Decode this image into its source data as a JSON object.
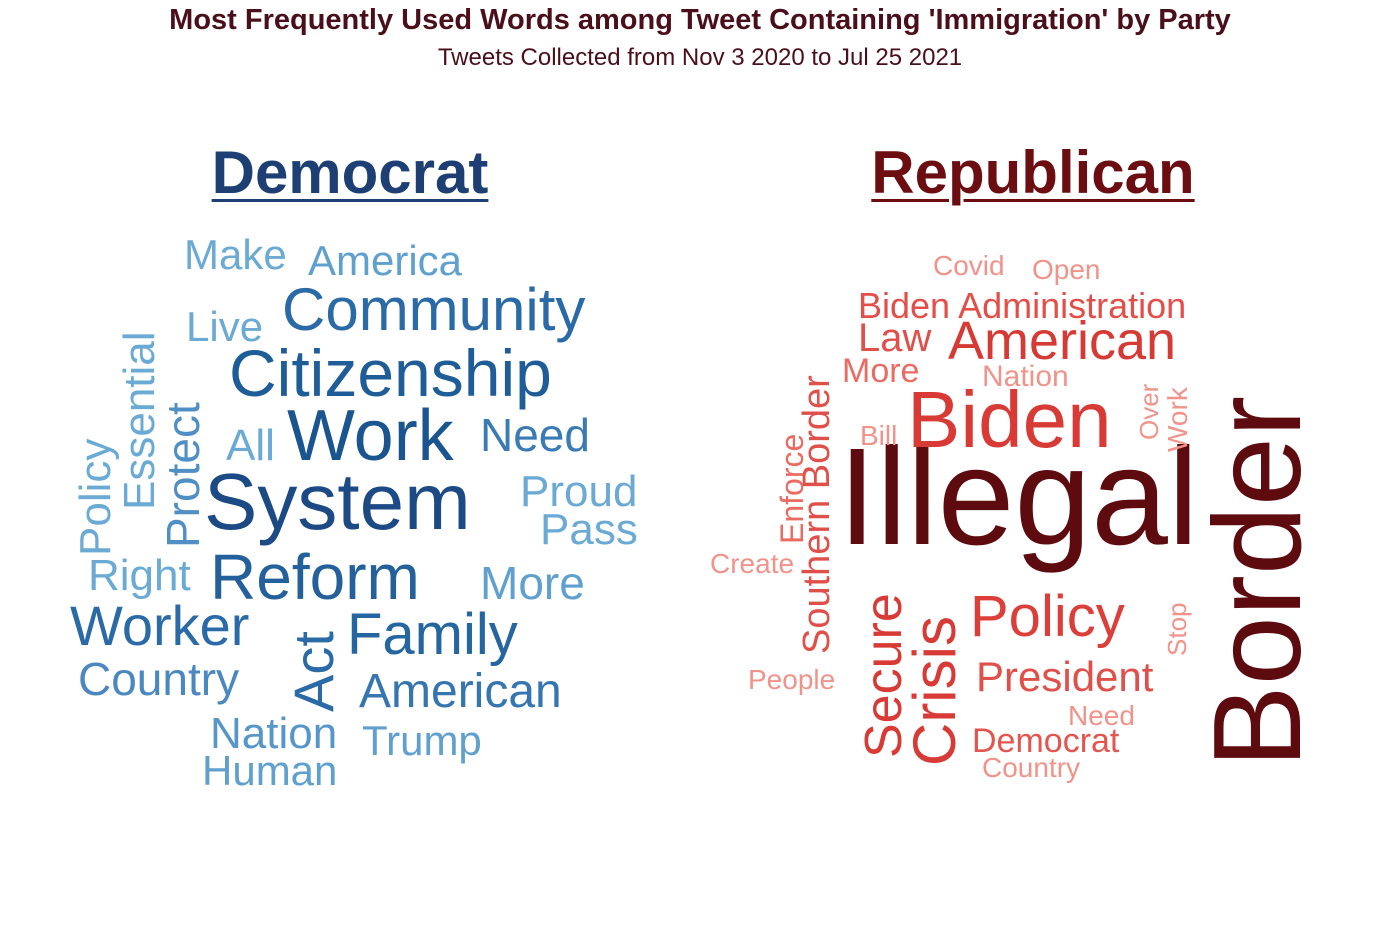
{
  "header": {
    "title": "Most Frequently Used Words among Tweet Containing 'Immigration' by Party",
    "subtitle": "Tweets Collected from Nov 3 2020 to Jul 25 2021"
  },
  "colors": {
    "title": "#4a0f1a",
    "democrat_title": "#1d3f73",
    "republican_title": "#6b0d11"
  },
  "panels": {
    "democrat": {
      "title": "Democrat",
      "words": [
        {
          "text": "System",
          "color": "#1b4a85"
        },
        {
          "text": "Work",
          "color": "#1b558f"
        },
        {
          "text": "Citizenship",
          "color": "#1f5d98"
        },
        {
          "text": "Reform",
          "color": "#24609c"
        },
        {
          "text": "Family",
          "color": "#2566a1"
        },
        {
          "text": "Community",
          "color": "#2a6aa6"
        },
        {
          "text": "Worker",
          "color": "#2a6aa6"
        },
        {
          "text": "Act",
          "color": "#2a6aa6"
        },
        {
          "text": "American",
          "color": "#3575b0"
        },
        {
          "text": "Need",
          "color": "#3a7bb4"
        },
        {
          "text": "Country",
          "color": "#4a88bf"
        },
        {
          "text": "Nation",
          "color": "#5796c8"
        },
        {
          "text": "Protect",
          "color": "#4f8fc4"
        },
        {
          "text": "America",
          "color": "#5fa0cf"
        },
        {
          "text": "Proud",
          "color": "#6aaad4"
        },
        {
          "text": "Pass",
          "color": "#6aaad4"
        },
        {
          "text": "More",
          "color": "#5fa0cf"
        },
        {
          "text": "Trump",
          "color": "#5fa0cf"
        },
        {
          "text": "Human",
          "color": "#5fa0cf"
        },
        {
          "text": "Right",
          "color": "#6aaad4"
        },
        {
          "text": "Make",
          "color": "#6aaad4"
        },
        {
          "text": "Live",
          "color": "#6aaad4"
        },
        {
          "text": "All",
          "color": "#6aaad4"
        },
        {
          "text": "Essential",
          "color": "#6aaad4"
        },
        {
          "text": "Policy",
          "color": "#6aaad4"
        }
      ]
    },
    "republican": {
      "title": "Republican",
      "words": [
        {
          "text": "Illegal",
          "color": "#5e0b10"
        },
        {
          "text": "Border",
          "color": "#5e0b10"
        },
        {
          "text": "Biden",
          "color": "#d83a36"
        },
        {
          "text": "American",
          "color": "#d53a35"
        },
        {
          "text": "Crisis",
          "color": "#d83a36"
        },
        {
          "text": "Policy",
          "color": "#dc3f3a"
        },
        {
          "text": "Secure",
          "color": "#d83a36"
        },
        {
          "text": "President",
          "color": "#e0504a"
        },
        {
          "text": "Southern Border",
          "color": "#e0504a"
        },
        {
          "text": "Law",
          "color": "#e0504a"
        },
        {
          "text": "Biden Administration",
          "color": "#e34e48"
        },
        {
          "text": "Democrat",
          "color": "#e4554f"
        },
        {
          "text": "More",
          "color": "#ea6b62"
        },
        {
          "text": "Enforce",
          "color": "#ea6b62"
        },
        {
          "text": "Nation",
          "color": "#f0938a"
        },
        {
          "text": "Need",
          "color": "#f0938a"
        },
        {
          "text": "Country",
          "color": "#f0938a"
        },
        {
          "text": "Covid",
          "color": "#f0938a"
        },
        {
          "text": "Open",
          "color": "#f0938a"
        },
        {
          "text": "Bill",
          "color": "#f0938a"
        },
        {
          "text": "Create",
          "color": "#f0938a"
        },
        {
          "text": "People",
          "color": "#f0938a"
        },
        {
          "text": "Over",
          "color": "#f0938a"
        },
        {
          "text": "Work",
          "color": "#f0938a"
        },
        {
          "text": "Stop",
          "color": "#f0938a"
        }
      ]
    }
  }
}
